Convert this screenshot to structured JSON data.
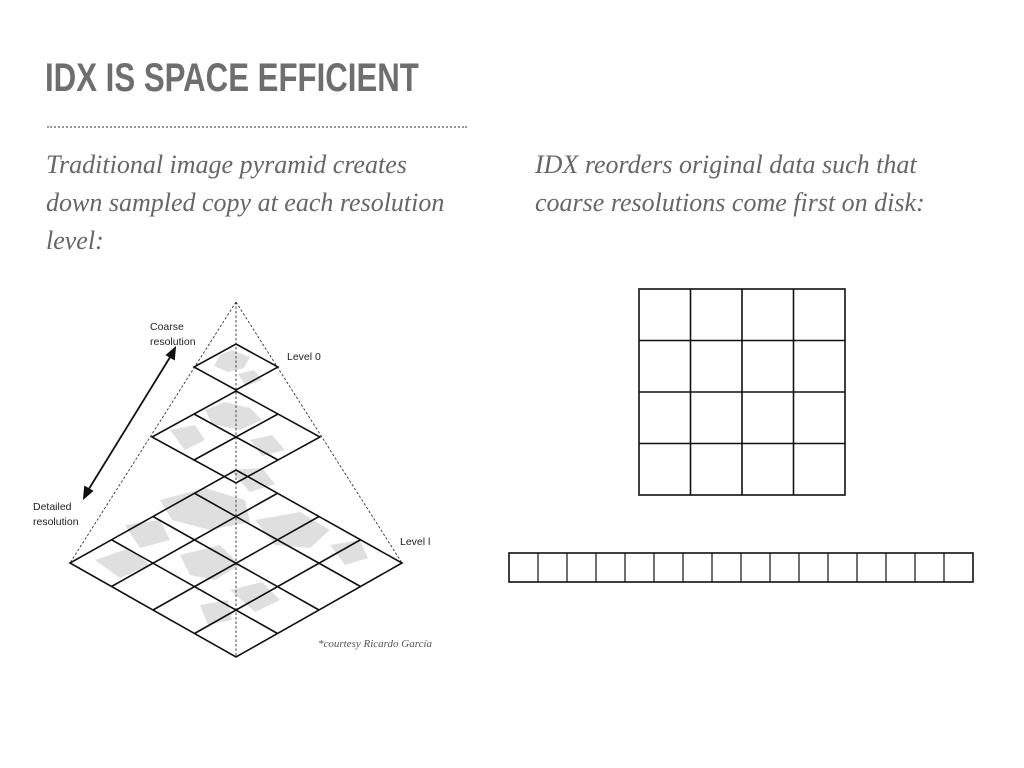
{
  "slide": {
    "title": "IDX IS SPACE EFFICIENT",
    "left_text": "Traditional image pyramid creates down sampled copy at each resolution level:",
    "right_text": "IDX reorders original data such that coarse resolutions come first on disk:"
  },
  "pyramid_figure": {
    "label_coarse_line1": "Coarse",
    "label_coarse_line2": "resolution",
    "label_detailed_line1": "Detailed",
    "label_detailed_line2": "resolution",
    "label_level0": "Level 0",
    "label_levell": "Level l",
    "credit": "*courtesy Ricardo García"
  },
  "idx_figure": {
    "grid_rows": 4,
    "grid_cols": 4,
    "strip_cells": 16
  }
}
